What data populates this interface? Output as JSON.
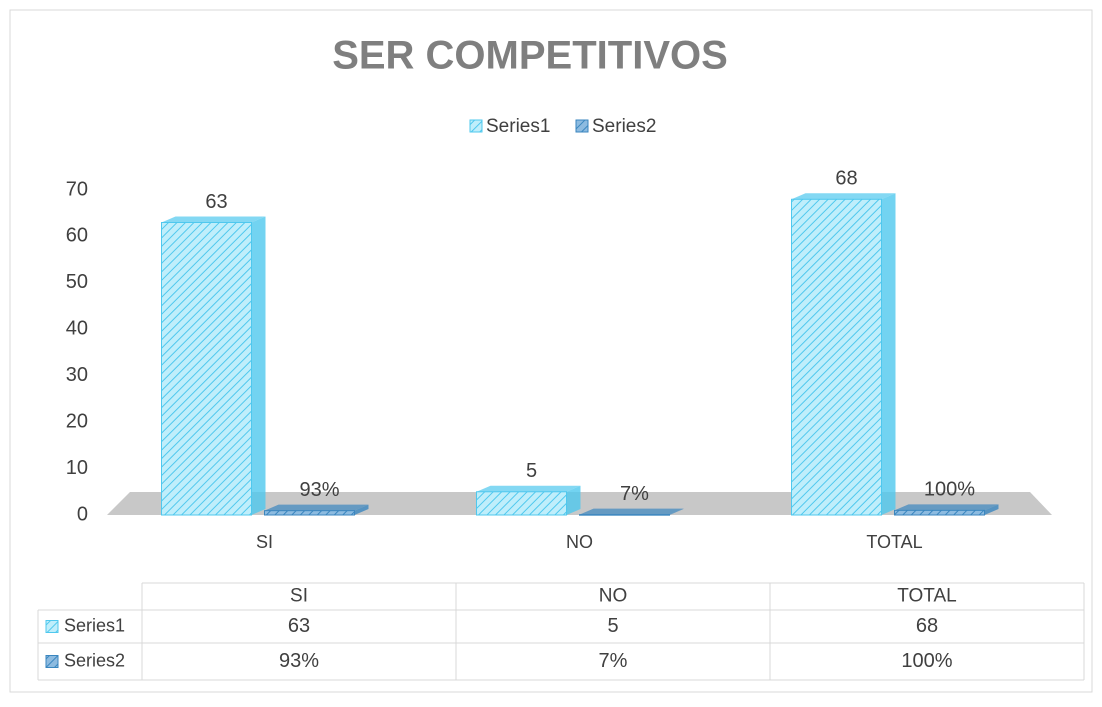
{
  "chart_data": {
    "type": "bar",
    "title": "SER COMPETITIVOS",
    "categories": [
      "SI",
      "NO",
      "TOTAL"
    ],
    "series": [
      {
        "name": "Series1",
        "color": "#4fc8ee",
        "values": [
          63,
          5,
          68
        ]
      },
      {
        "name": "Series2",
        "color": "#3a86bf",
        "values": [
          0.93,
          0.07,
          1
        ],
        "value_labels": [
          "93%",
          "7%",
          "100%"
        ]
      }
    ],
    "ylim": [
      0,
      70
    ],
    "yticks": [
      0,
      10,
      20,
      30,
      40,
      50,
      60,
      70
    ],
    "legend": "top",
    "data_table": true
  }
}
